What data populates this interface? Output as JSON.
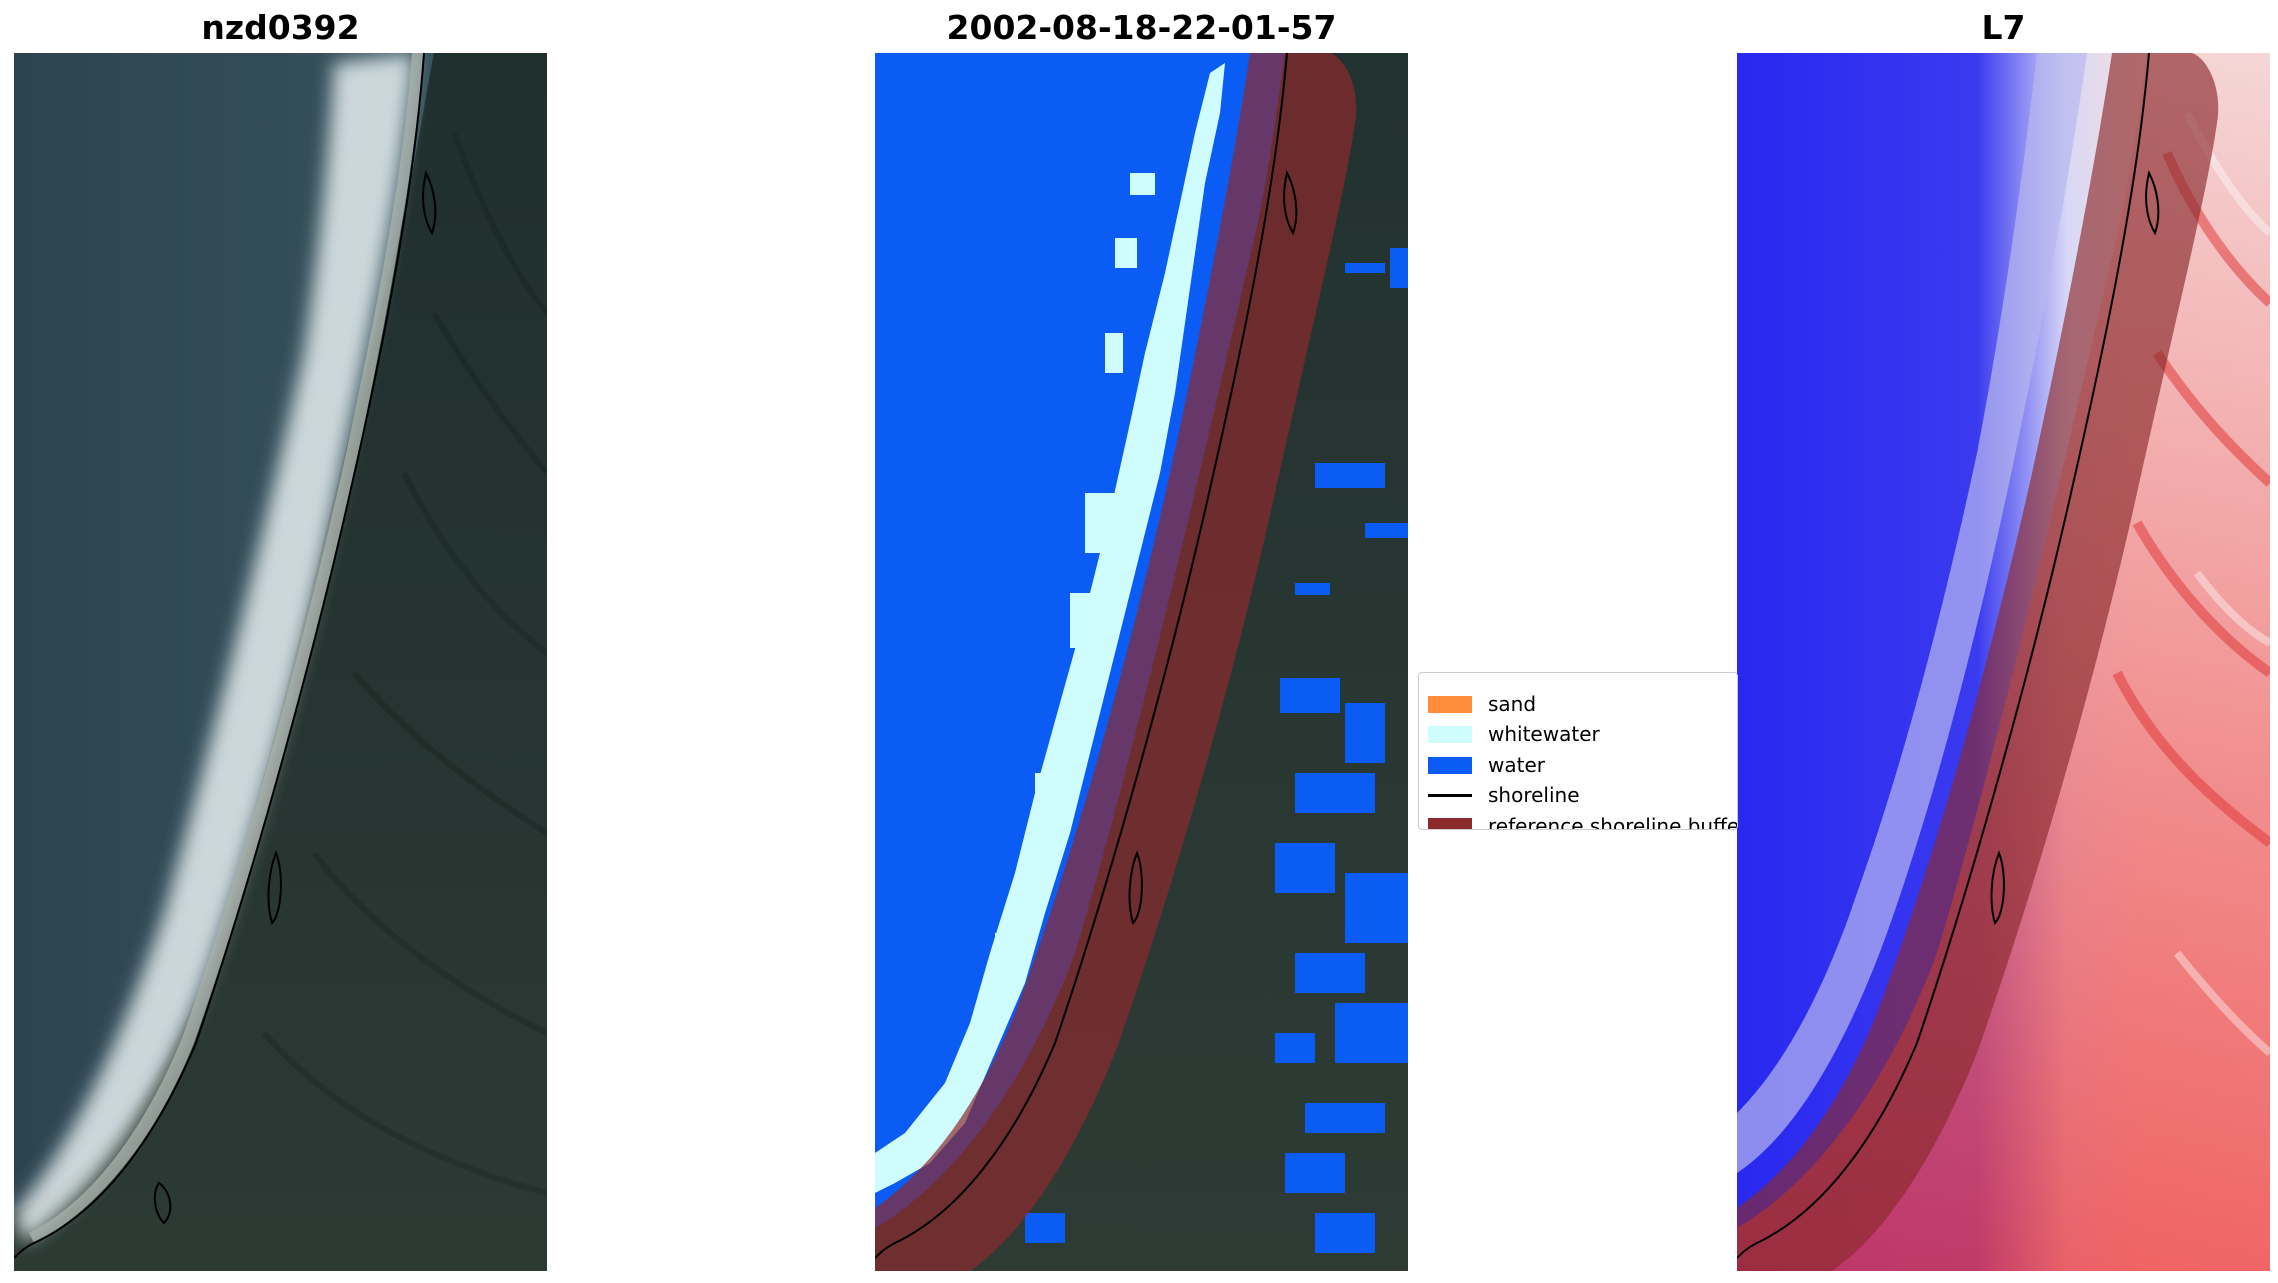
{
  "panels": {
    "left": {
      "title": "nzd0392"
    },
    "center": {
      "title": "2002-08-18-22-01-57"
    },
    "right": {
      "title": "L7"
    }
  },
  "legend": {
    "items": [
      {
        "label": "sand",
        "color": "#ff8c3a",
        "kind": "patch"
      },
      {
        "label": "whitewater",
        "color": "#cffdfd",
        "kind": "patch"
      },
      {
        "label": "water",
        "color": "#0a5cf5",
        "kind": "patch"
      },
      {
        "label": "shoreline",
        "color": "#000000",
        "kind": "line"
      },
      {
        "label": "reference shoreline buffer",
        "color": "#8b2a2d",
        "kind": "patch"
      }
    ]
  },
  "colors": {
    "sea": "#2e4550",
    "land": "#26352f",
    "water_class": "#0a5cf5",
    "whitewater_class": "#cffdfd",
    "buffer": "#8b2a2d"
  }
}
